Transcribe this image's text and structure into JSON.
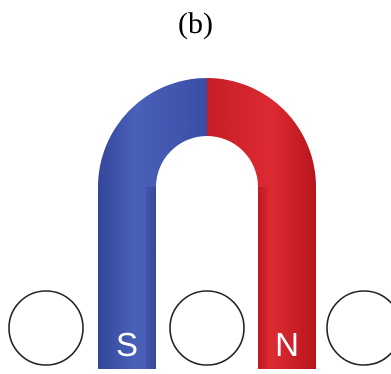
{
  "figure": {
    "caption": "(b)",
    "magnet": {
      "south_label": "S",
      "north_label": "N",
      "south_color": "#3b4fa6",
      "north_color": "#d3212a",
      "label_color": "#ffffff"
    },
    "circle_count": 3
  }
}
